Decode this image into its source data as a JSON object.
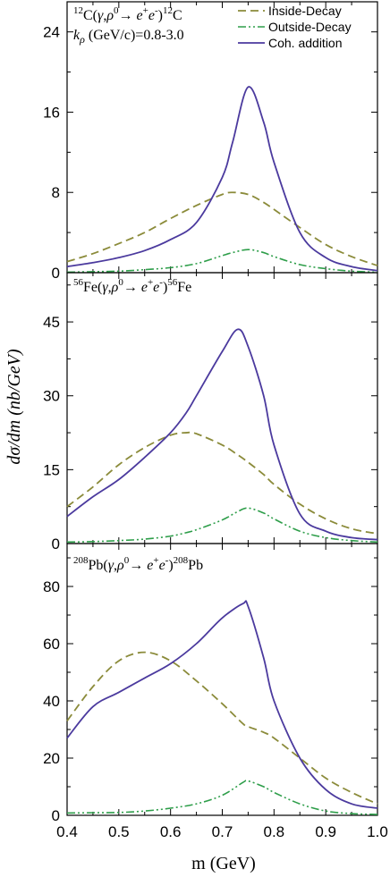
{
  "colors": {
    "inside_decay": "#8b8b3a",
    "outside_decay": "#2e9e4a",
    "coherent": "#4b3a9e",
    "axis": "#000000"
  },
  "axes": {
    "ylabel": "dσ/dm (nb/GeV)",
    "xlabel": "m (GeV)"
  },
  "legend": {
    "items": [
      {
        "label": "Inside-Decay",
        "style": "dashed",
        "color": "#8b8b3a"
      },
      {
        "label": "Outside-Decay",
        "style": "dash-dot-dot",
        "color": "#2e9e4a"
      },
      {
        "label": "Coh. addition",
        "style": "solid",
        "color": "#4b3a9e"
      }
    ]
  },
  "panels": [
    {
      "reaction": "12C(γ,ρ0→ e+e-)12C",
      "extra": "kρ (GeV/c)=0.8-3.0"
    },
    {
      "reaction": "56Fe(γ,ρ0→ e+e-)56Fe"
    },
    {
      "reaction": "208Pb(γ,ρ0→ e+e-)208Pb"
    }
  ],
  "chart_data": [
    {
      "type": "line",
      "title": "",
      "xlabel": "m (GeV)",
      "ylabel": "dσ/dm (nb/GeV)",
      "xlim": [
        0.4,
        1.0
      ],
      "ylim": [
        0,
        27
      ],
      "yticks": [
        0,
        8,
        16,
        24
      ],
      "xticks": [
        0.4,
        0.5,
        0.6,
        0.7,
        0.8,
        0.9,
        1.0
      ],
      "legend_position": "top-right",
      "x": [
        0.4,
        0.45,
        0.5,
        0.55,
        0.6,
        0.65,
        0.7,
        0.72,
        0.75,
        0.78,
        0.8,
        0.85,
        0.9,
        0.95,
        1.0
      ],
      "series": [
        {
          "name": "Inside-Decay",
          "values": [
            1.1,
            1.9,
            2.9,
            4.0,
            5.4,
            6.7,
            7.8,
            8.0,
            7.8,
            7.0,
            6.3,
            4.5,
            2.8,
            1.6,
            0.7
          ]
        },
        {
          "name": "Outside-Decay",
          "values": [
            0.05,
            0.1,
            0.15,
            0.3,
            0.5,
            0.9,
            1.7,
            2.0,
            2.3,
            2.0,
            1.6,
            0.8,
            0.4,
            0.15,
            0.05
          ]
        },
        {
          "name": "Coh. addition",
          "values": [
            0.6,
            1.0,
            1.5,
            2.2,
            3.3,
            5.0,
            9.5,
            13.0,
            18.5,
            15.0,
            11.0,
            4.0,
            1.5,
            0.6,
            0.2
          ]
        }
      ]
    },
    {
      "type": "line",
      "title": "",
      "xlabel": "m (GeV)",
      "ylabel": "dσ/dm (nb/GeV)",
      "xlim": [
        0.4,
        1.0
      ],
      "ylim": [
        0,
        55
      ],
      "yticks": [
        0,
        15,
        30,
        45
      ],
      "xticks": [
        0.4,
        0.5,
        0.6,
        0.7,
        0.8,
        0.9,
        1.0
      ],
      "x": [
        0.4,
        0.45,
        0.5,
        0.55,
        0.6,
        0.63,
        0.65,
        0.7,
        0.73,
        0.75,
        0.78,
        0.8,
        0.85,
        0.9,
        0.95,
        1.0
      ],
      "series": [
        {
          "name": "Inside-Decay",
          "values": [
            7.5,
            11.5,
            16.0,
            19.5,
            22.0,
            22.5,
            22.3,
            20.0,
            18.0,
            16.5,
            14.0,
            12.0,
            8.0,
            5.0,
            3.0,
            2.0
          ]
        },
        {
          "name": "Outside-Decay",
          "values": [
            0.3,
            0.4,
            0.6,
            0.9,
            1.5,
            2.2,
            2.8,
            4.8,
            6.5,
            7.2,
            6.2,
            5.0,
            2.5,
            1.2,
            0.6,
            0.3
          ]
        },
        {
          "name": "Coh. addition",
          "values": [
            5.5,
            9.5,
            13.0,
            17.5,
            22.5,
            26.5,
            30.0,
            39.0,
            43.5,
            40.0,
            30.0,
            20.0,
            6.0,
            2.5,
            1.2,
            0.8
          ]
        }
      ]
    },
    {
      "type": "line",
      "title": "",
      "xlabel": "m (GeV)",
      "ylabel": "dσ/dm (nb/GeV)",
      "xlim": [
        0.4,
        1.0
      ],
      "ylim": [
        0,
        95
      ],
      "yticks": [
        0,
        20,
        40,
        60,
        80
      ],
      "xticks": [
        0.4,
        0.5,
        0.6,
        0.7,
        0.8,
        0.9,
        1.0
      ],
      "xticklabels": [
        "0.4",
        "0.5",
        "0.6",
        "0.7",
        "0.8",
        "0.9",
        "1.0"
      ],
      "x": [
        0.4,
        0.45,
        0.5,
        0.55,
        0.6,
        0.65,
        0.7,
        0.74,
        0.75,
        0.78,
        0.8,
        0.85,
        0.9,
        0.95,
        1.0
      ],
      "series": [
        {
          "name": "Inside-Decay",
          "values": [
            33.0,
            45.0,
            54.0,
            57.0,
            54.0,
            47.0,
            39.0,
            32.0,
            31.0,
            29.0,
            27.0,
            20.0,
            13.0,
            8.0,
            4.0
          ]
        },
        {
          "name": "Outside-Decay",
          "values": [
            0.8,
            0.9,
            1.0,
            1.5,
            2.5,
            4.0,
            7.0,
            11.5,
            12.0,
            10.0,
            8.0,
            4.0,
            1.5,
            0.6,
            0.3
          ]
        },
        {
          "name": "Coh. addition",
          "values": [
            27.0,
            38.0,
            43.0,
            48.0,
            53.0,
            60.0,
            69.0,
            74.0,
            73.0,
            55.0,
            40.0,
            20.0,
            9.0,
            4.0,
            2.5
          ]
        }
      ]
    }
  ]
}
